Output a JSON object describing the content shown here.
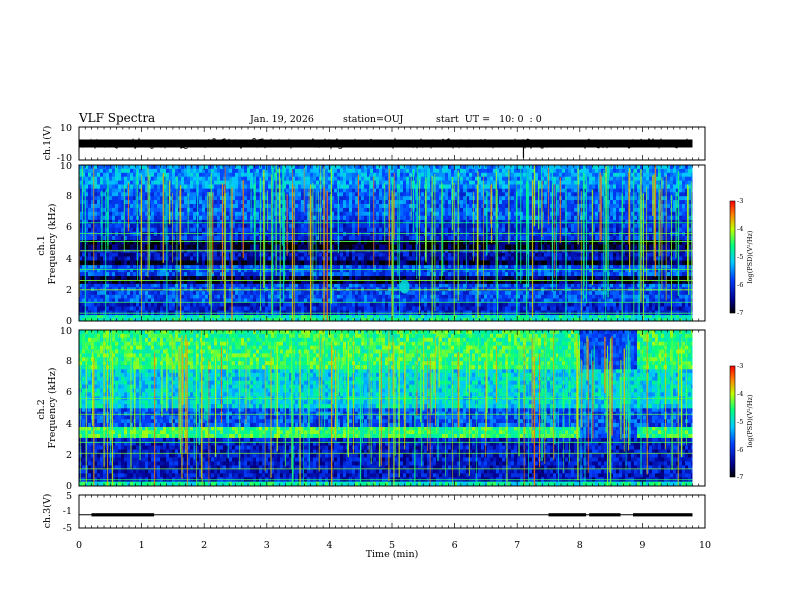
{
  "header": {
    "title": "VLF Spectra",
    "date": "Jan. 19, 2026",
    "station": "station=OUJ",
    "start": "start  UT =   10: 0  : 0"
  },
  "colors": {
    "background_noise": "#000a60",
    "floor": "#000000",
    "low": "#1030d0",
    "mid": "#00c8c0",
    "high": "#80ff40",
    "peak": "#ff2000"
  },
  "chart_data": [
    {
      "type": "line",
      "panel": "ch1-waveform",
      "ylabel": "ch.1(V)",
      "ylim": [
        -10,
        10
      ],
      "yticks": [
        "10",
        "-10"
      ],
      "signal_level_v": 0,
      "spike_time_min": 7.1
    },
    {
      "type": "heatmap",
      "panel": "ch1-spectrogram",
      "ylabel": "ch.1\nFrequency (kHz)",
      "ylabel_line1": "ch.1",
      "ylabel_line2": "Frequency (kHz)",
      "ylim": [
        0,
        10
      ],
      "yticks": [
        "0",
        "2",
        "4",
        "6",
        "8",
        "10"
      ],
      "colorbar": {
        "label": "log(PSD)(V²/Hz)",
        "range": [
          -7,
          -3
        ],
        "ticks": [
          "-3",
          "-4",
          "-5",
          "-6",
          "-7"
        ]
      },
      "bands_khz": [
        {
          "from": 0.0,
          "to": 0.4,
          "level": 0.55
        },
        {
          "from": 0.4,
          "to": 1.2,
          "level": 0.22
        },
        {
          "from": 1.2,
          "to": 2.4,
          "level": 0.3
        },
        {
          "from": 2.4,
          "to": 2.9,
          "level": 0.05
        },
        {
          "from": 2.9,
          "to": 3.6,
          "level": 0.3
        },
        {
          "from": 3.6,
          "to": 3.9,
          "level": 0.05
        },
        {
          "from": 3.9,
          "to": 4.6,
          "level": 0.18
        },
        {
          "from": 4.6,
          "to": 5.2,
          "level": 0.04
        },
        {
          "from": 5.2,
          "to": 6.5,
          "level": 0.25
        },
        {
          "from": 6.5,
          "to": 8.5,
          "level": 0.32
        },
        {
          "from": 8.5,
          "to": 10.0,
          "level": 0.4
        }
      ],
      "tone_lines_khz": [
        0.5,
        1.2,
        2.0,
        2.6,
        3.3,
        4.5,
        5.1,
        5.6,
        6.3
      ],
      "feature": {
        "label": "blob",
        "time_min": 5.2,
        "freq_khz": 2.2
      }
    },
    {
      "type": "heatmap",
      "panel": "ch2-spectrogram",
      "ylabel": "ch.2\nFrequency (kHz)",
      "ylabel_line1": "ch.2",
      "ylabel_line2": "Frequency (kHz)",
      "ylim": [
        0,
        10
      ],
      "yticks": [
        "0",
        "2",
        "4",
        "6",
        "8",
        "10"
      ],
      "colorbar": {
        "label": "log(PSD)(V²/Hz)",
        "range": [
          -7,
          -3
        ],
        "ticks": [
          "-3",
          "-4",
          "-5",
          "-6",
          "-7"
        ]
      },
      "bands_khz": [
        {
          "from": 0.0,
          "to": 0.3,
          "level": 0.55
        },
        {
          "from": 0.3,
          "to": 3.1,
          "level": 0.2
        },
        {
          "from": 3.1,
          "to": 3.8,
          "level": 0.62
        },
        {
          "from": 3.8,
          "to": 5.0,
          "level": 0.3
        },
        {
          "from": 5.0,
          "to": 7.5,
          "level": 0.48
        },
        {
          "from": 7.5,
          "to": 10.0,
          "level": 0.62
        }
      ],
      "tone_lines_khz": [
        0.4,
        1.1,
        2.1,
        2.8,
        4.6,
        5.6
      ],
      "band_gap_min": [
        8.0,
        8.9
      ]
    },
    {
      "type": "line",
      "panel": "ch3-waveform",
      "ylabel": "ch.3(V)",
      "ylim": [
        -5,
        5
      ],
      "yticks": [
        "5",
        "-1",
        "-5"
      ],
      "level_v": -1,
      "segments_min": [
        [
          0.2,
          1.2
        ],
        [
          7.5,
          8.1
        ],
        [
          8.15,
          8.65
        ],
        [
          8.85,
          9.8
        ]
      ]
    }
  ],
  "time_axis": {
    "xlabel": "Time (min)",
    "xlim": [
      0,
      10
    ],
    "xticks": [
      "0",
      "1",
      "2",
      "3",
      "4",
      "5",
      "6",
      "7",
      "8",
      "9",
      "10"
    ],
    "data_end_min": 9.8
  }
}
